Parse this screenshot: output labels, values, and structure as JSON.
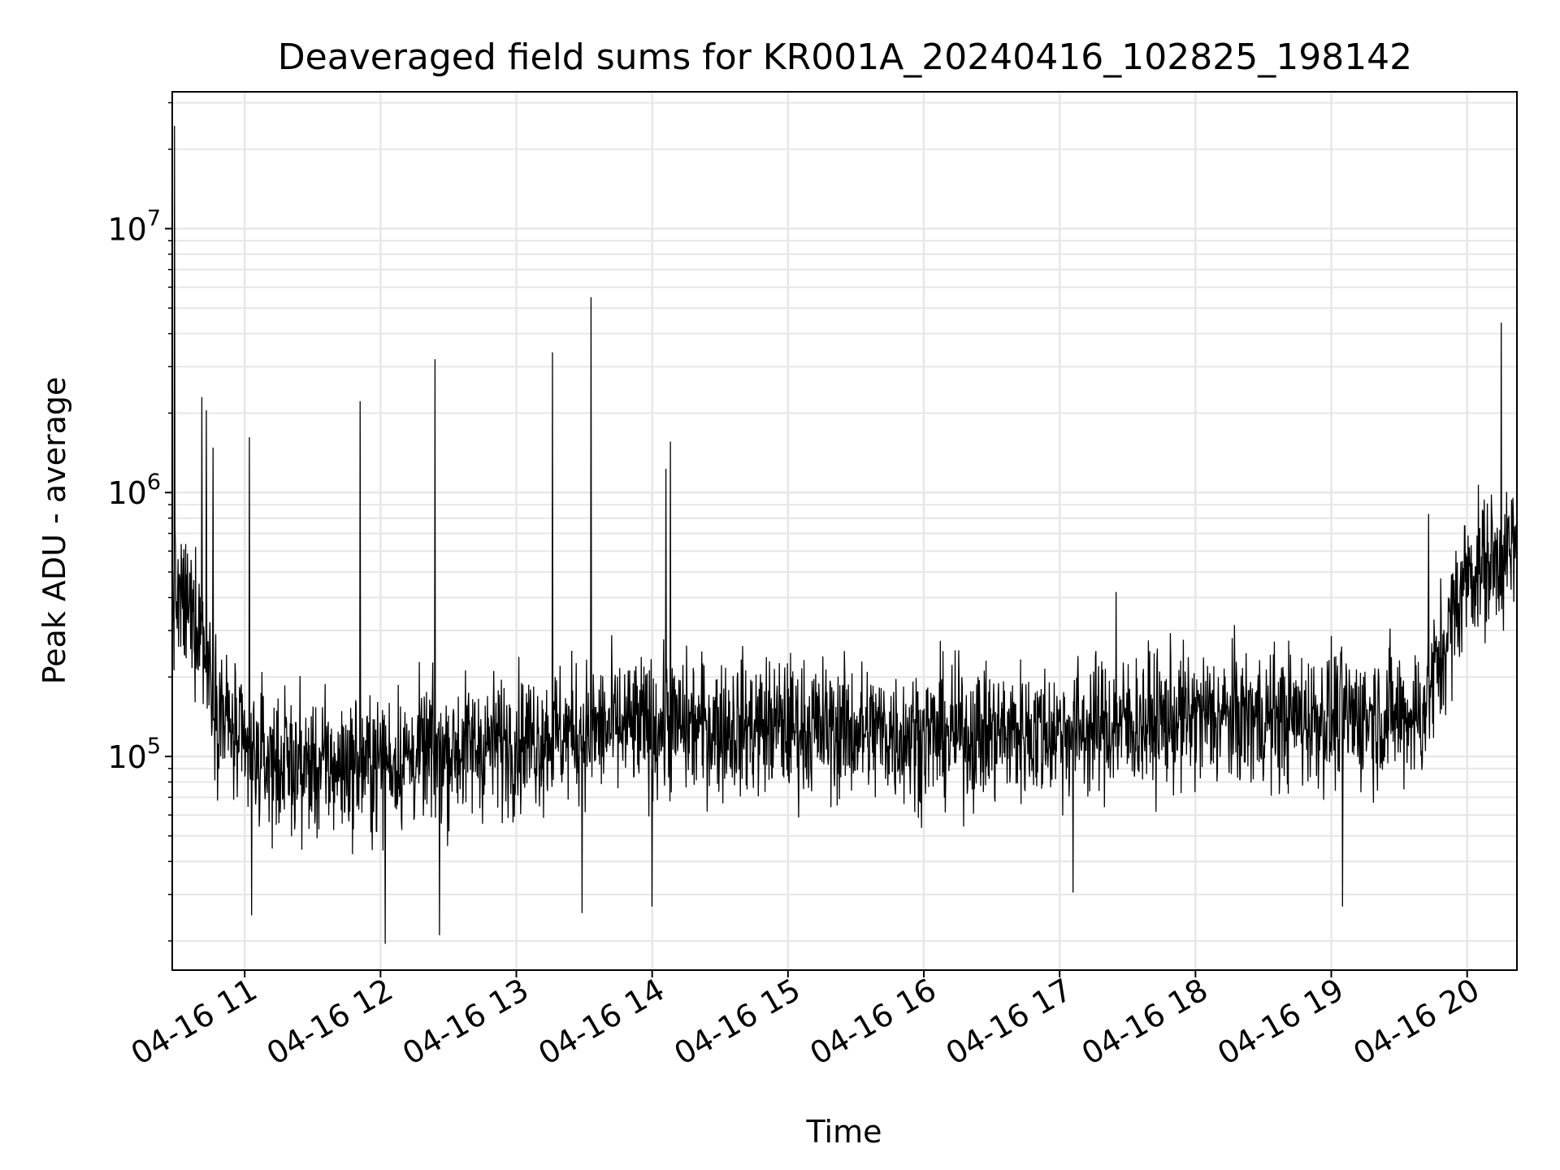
{
  "chart_data": {
    "type": "line",
    "title": "Deaveraged field sums for KR001A_20240416_102825_198142",
    "xlabel": "Time",
    "ylabel": "Peak ADU - average",
    "yscale": "log",
    "grid": true,
    "grid_minor": true,
    "line_color": "#000000",
    "grid_color": "#e6e6e6",
    "date": "2024-04-16",
    "xlim": [
      "2024-04-16 10:28",
      "2024-04-16 20:22"
    ],
    "ylim": [
      15500,
      33000000
    ],
    "x_ticks": [
      {
        "time": "2024-04-16 11:00",
        "label": "04-16 11"
      },
      {
        "time": "2024-04-16 12:00",
        "label": "04-16 12"
      },
      {
        "time": "2024-04-16 13:00",
        "label": "04-16 13"
      },
      {
        "time": "2024-04-16 14:00",
        "label": "04-16 14"
      },
      {
        "time": "2024-04-16 15:00",
        "label": "04-16 15"
      },
      {
        "time": "2024-04-16 16:00",
        "label": "04-16 16"
      },
      {
        "time": "2024-04-16 17:00",
        "label": "04-16 17"
      },
      {
        "time": "2024-04-16 18:00",
        "label": "04-16 18"
      },
      {
        "time": "2024-04-16 19:00",
        "label": "04-16 19"
      },
      {
        "time": "2024-04-16 20:00",
        "label": "04-16 20"
      }
    ],
    "y_ticks": [
      {
        "value": 100000,
        "base": "10",
        "exp": "5"
      },
      {
        "value": 1000000,
        "base": "10",
        "exp": "6"
      },
      {
        "value": 10000000,
        "base": "10",
        "exp": "7"
      }
    ],
    "baseline": [
      {
        "x": "2024-04-16 10:28",
        "y": 400000
      },
      {
        "x": "2024-04-16 10:40",
        "y": 330000
      },
      {
        "x": "2024-04-16 10:48",
        "y": 160000
      },
      {
        "x": "2024-04-16 11:00",
        "y": 100000
      },
      {
        "x": "2024-04-16 11:30",
        "y": 90000
      },
      {
        "x": "2024-04-16 12:00",
        "y": 95000
      },
      {
        "x": "2024-04-16 12:30",
        "y": 105000
      },
      {
        "x": "2024-04-16 13:00",
        "y": 115000
      },
      {
        "x": "2024-04-16 13:30",
        "y": 125000
      },
      {
        "x": "2024-04-16 14:00",
        "y": 130000
      },
      {
        "x": "2024-04-16 15:00",
        "y": 130000
      },
      {
        "x": "2024-04-16 16:00",
        "y": 120000
      },
      {
        "x": "2024-04-16 17:00",
        "y": 125000
      },
      {
        "x": "2024-04-16 18:00",
        "y": 140000
      },
      {
        "x": "2024-04-16 19:00",
        "y": 140000
      },
      {
        "x": "2024-04-16 19:40",
        "y": 145000
      },
      {
        "x": "2024-04-16 19:52",
        "y": 300000
      },
      {
        "x": "2024-04-16 20:00",
        "y": 500000
      },
      {
        "x": "2024-04-16 20:22",
        "y": 600000
      }
    ],
    "spikes": [
      {
        "x": "2024-04-16 10:29",
        "y": 24500000
      },
      {
        "x": "2024-04-16 10:41",
        "y": 2300000
      },
      {
        "x": "2024-04-16 10:43",
        "y": 2050000
      },
      {
        "x": "2024-04-16 10:46",
        "y": 1480000
      },
      {
        "x": "2024-04-16 11:02",
        "y": 1620000
      },
      {
        "x": "2024-04-16 11:51",
        "y": 2220000
      },
      {
        "x": "2024-04-16 12:24",
        "y": 3200000
      },
      {
        "x": "2024-04-16 13:16",
        "y": 3400000
      },
      {
        "x": "2024-04-16 13:33",
        "y": 5500000
      },
      {
        "x": "2024-04-16 14:06",
        "y": 1230000
      },
      {
        "x": "2024-04-16 14:08",
        "y": 1560000
      },
      {
        "x": "2024-04-16 17:25",
        "y": 420000
      },
      {
        "x": "2024-04-16 19:43",
        "y": 830000
      },
      {
        "x": "2024-04-16 20:15",
        "y": 4400000
      }
    ],
    "dips": [
      {
        "x": "2024-04-16 11:03",
        "y": 25000
      },
      {
        "x": "2024-04-16 12:02",
        "y": 19500
      },
      {
        "x": "2024-04-16 12:26",
        "y": 21000
      },
      {
        "x": "2024-04-16 13:29",
        "y": 25500
      },
      {
        "x": "2024-04-16 14:00",
        "y": 27000
      },
      {
        "x": "2024-04-16 17:06",
        "y": 30500
      },
      {
        "x": "2024-04-16 19:05",
        "y": 27000
      }
    ]
  }
}
